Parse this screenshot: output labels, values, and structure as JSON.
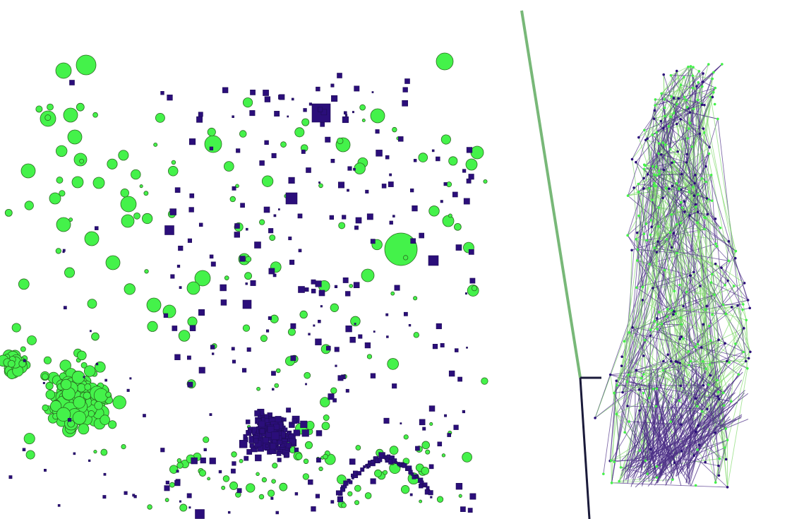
{
  "figure": {
    "panels": [
      {
        "id": "scatter-panel",
        "description_key": "node-scatter"
      },
      {
        "id": "network-panel",
        "description_key": "node-link-tower"
      }
    ]
  },
  "colors": {
    "green_node": "#44f24a",
    "green_edge": "#7fd86a",
    "purple_node": "#2b0e7a",
    "purple_edge": "#4b2d86",
    "axis_line": "#78b878",
    "dark_line": "#1a1a3a",
    "background": "#ffffff"
  },
  "legend": {},
  "labels": {}
}
